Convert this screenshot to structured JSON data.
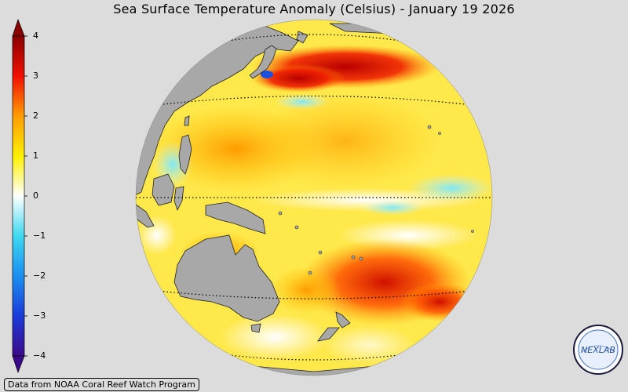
{
  "title": "Sea Surface Temperature Anomaly (Celsius) - January 19 2026",
  "colorbar": {
    "ticks": [
      "4",
      "3",
      "2",
      "1",
      "0",
      "−1",
      "−2",
      "−3",
      "−4"
    ],
    "min": -4,
    "max": 4,
    "colors": [
      "#3b0a8a",
      "#1b3ad8",
      "#1b8ff0",
      "#3fd8f0",
      "#ffffff",
      "#fff000",
      "#ff9d00",
      "#f01000",
      "#8a0000"
    ]
  },
  "map": {
    "projection": "orthographic",
    "land_color": "#a8a8a8",
    "background_color": "#dcdcdc"
  },
  "credit": "Data from NOAA Coral Reef Watch Program",
  "logo": {
    "text": "NEXLAB",
    "icon": "nexlab-logo-icon"
  }
}
